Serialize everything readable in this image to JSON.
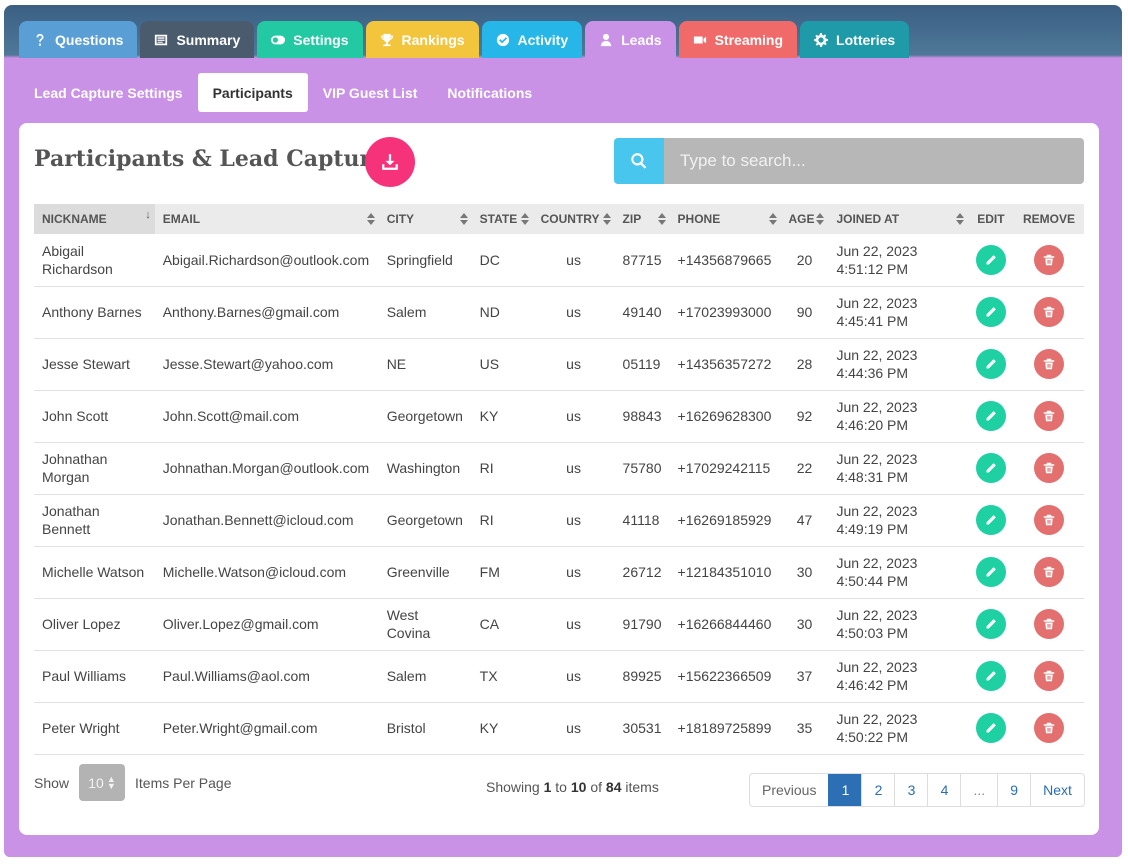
{
  "tabs": [
    {
      "label": "Questions",
      "icon": "question-icon",
      "color": "#5a9ed6"
    },
    {
      "label": "Summary",
      "icon": "list-icon",
      "color": "#4a5b6e"
    },
    {
      "label": "Settings",
      "icon": "toggle-icon",
      "color": "#22c9a2"
    },
    {
      "label": "Rankings",
      "icon": "trophy-icon",
      "color": "#f2c53d"
    },
    {
      "label": "Activity",
      "icon": "check-circle-icon",
      "color": "#27b6e8"
    },
    {
      "label": "Leads",
      "icon": "user-icon",
      "color": "#c992e6"
    },
    {
      "label": "Streaming",
      "icon": "video-icon",
      "color": "#f06a6a"
    },
    {
      "label": "Lotteries",
      "icon": "gear-icon",
      "color": "#1e9aa8"
    }
  ],
  "subtabs": [
    {
      "label": "Lead Capture Settings",
      "active": false
    },
    {
      "label": "Participants",
      "active": true
    },
    {
      "label": "VIP Guest List",
      "active": false
    },
    {
      "label": "Notifications",
      "active": false
    }
  ],
  "card": {
    "title": "Participants & Lead Capture",
    "search_placeholder": "Type to search..."
  },
  "columns": [
    "NICKNAME",
    "EMAIL",
    "CITY",
    "STATE",
    "COUNTRY",
    "ZIP",
    "PHONE",
    "AGE",
    "JOINED AT",
    "EDIT",
    "REMOVE"
  ],
  "rows": [
    {
      "nickname": "Abigail Richardson",
      "email": "Abigail.Richardson@outlook.com",
      "city": "Springfield",
      "state": "DC",
      "country": "us",
      "zip": "87715",
      "phone": "+14356879665",
      "age": "20",
      "joined_date": "Jun 22, 2023",
      "joined_time": "4:51:12 PM"
    },
    {
      "nickname": "Anthony Barnes",
      "email": "Anthony.Barnes@gmail.com",
      "city": "Salem",
      "state": "ND",
      "country": "us",
      "zip": "49140",
      "phone": "+17023993000",
      "age": "90",
      "joined_date": "Jun 22, 2023",
      "joined_time": "4:45:41 PM"
    },
    {
      "nickname": "Jesse Stewart",
      "email": "Jesse.Stewart@yahoo.com",
      "city": "NE",
      "state": "US",
      "country": "us",
      "zip": "05119",
      "phone": "+14356357272",
      "age": "28",
      "joined_date": "Jun 22, 2023",
      "joined_time": "4:44:36 PM"
    },
    {
      "nickname": "John Scott",
      "email": "John.Scott@mail.com",
      "city": "Georgetown",
      "state": "KY",
      "country": "us",
      "zip": "98843",
      "phone": "+16269628300",
      "age": "92",
      "joined_date": "Jun 22, 2023",
      "joined_time": "4:46:20 PM"
    },
    {
      "nickname": "Johnathan Morgan",
      "email": "Johnathan.Morgan@outlook.com",
      "city": "Washington",
      "state": "RI",
      "country": "us",
      "zip": "75780",
      "phone": "+17029242115",
      "age": "22",
      "joined_date": "Jun 22, 2023",
      "joined_time": "4:48:31 PM"
    },
    {
      "nickname": "Jonathan Bennett",
      "email": "Jonathan.Bennett@icloud.com",
      "city": "Georgetown",
      "state": "RI",
      "country": "us",
      "zip": "41118",
      "phone": "+16269185929",
      "age": "47",
      "joined_date": "Jun 22, 2023",
      "joined_time": "4:49:19 PM"
    },
    {
      "nickname": "Michelle Watson",
      "email": "Michelle.Watson@icloud.com",
      "city": "Greenville",
      "state": "FM",
      "country": "us",
      "zip": "26712",
      "phone": "+12184351010",
      "age": "30",
      "joined_date": "Jun 22, 2023",
      "joined_time": "4:50:44 PM"
    },
    {
      "nickname": "Oliver Lopez",
      "email": "Oliver.Lopez@gmail.com",
      "city": "West Covina",
      "state": "CA",
      "country": "us",
      "zip": "91790",
      "phone": "+16266844460",
      "age": "30",
      "joined_date": "Jun 22, 2023",
      "joined_time": "4:50:03 PM"
    },
    {
      "nickname": "Paul Williams",
      "email": "Paul.Williams@aol.com",
      "city": "Salem",
      "state": "TX",
      "country": "us",
      "zip": "89925",
      "phone": "+15622366509",
      "age": "37",
      "joined_date": "Jun 22, 2023",
      "joined_time": "4:46:42 PM"
    },
    {
      "nickname": "Peter Wright",
      "email": "Peter.Wright@gmail.com",
      "city": "Bristol",
      "state": "KY",
      "country": "us",
      "zip": "30531",
      "phone": "+18189725899",
      "age": "35",
      "joined_date": "Jun 22, 2023",
      "joined_time": "4:50:22 PM"
    }
  ],
  "footer": {
    "show_label": "Show",
    "per_page_value": "10",
    "per_page_label": "Items Per Page",
    "showing_prefix": "Showing",
    "showing_from": "1",
    "showing_to_word": "to",
    "showing_to": "10",
    "showing_of_word": "of",
    "showing_total": "84",
    "showing_suffix": "items"
  },
  "pagination": [
    "Previous",
    "1",
    "2",
    "3",
    "4",
    "...",
    "9",
    "Next"
  ],
  "pagination_active": "1"
}
